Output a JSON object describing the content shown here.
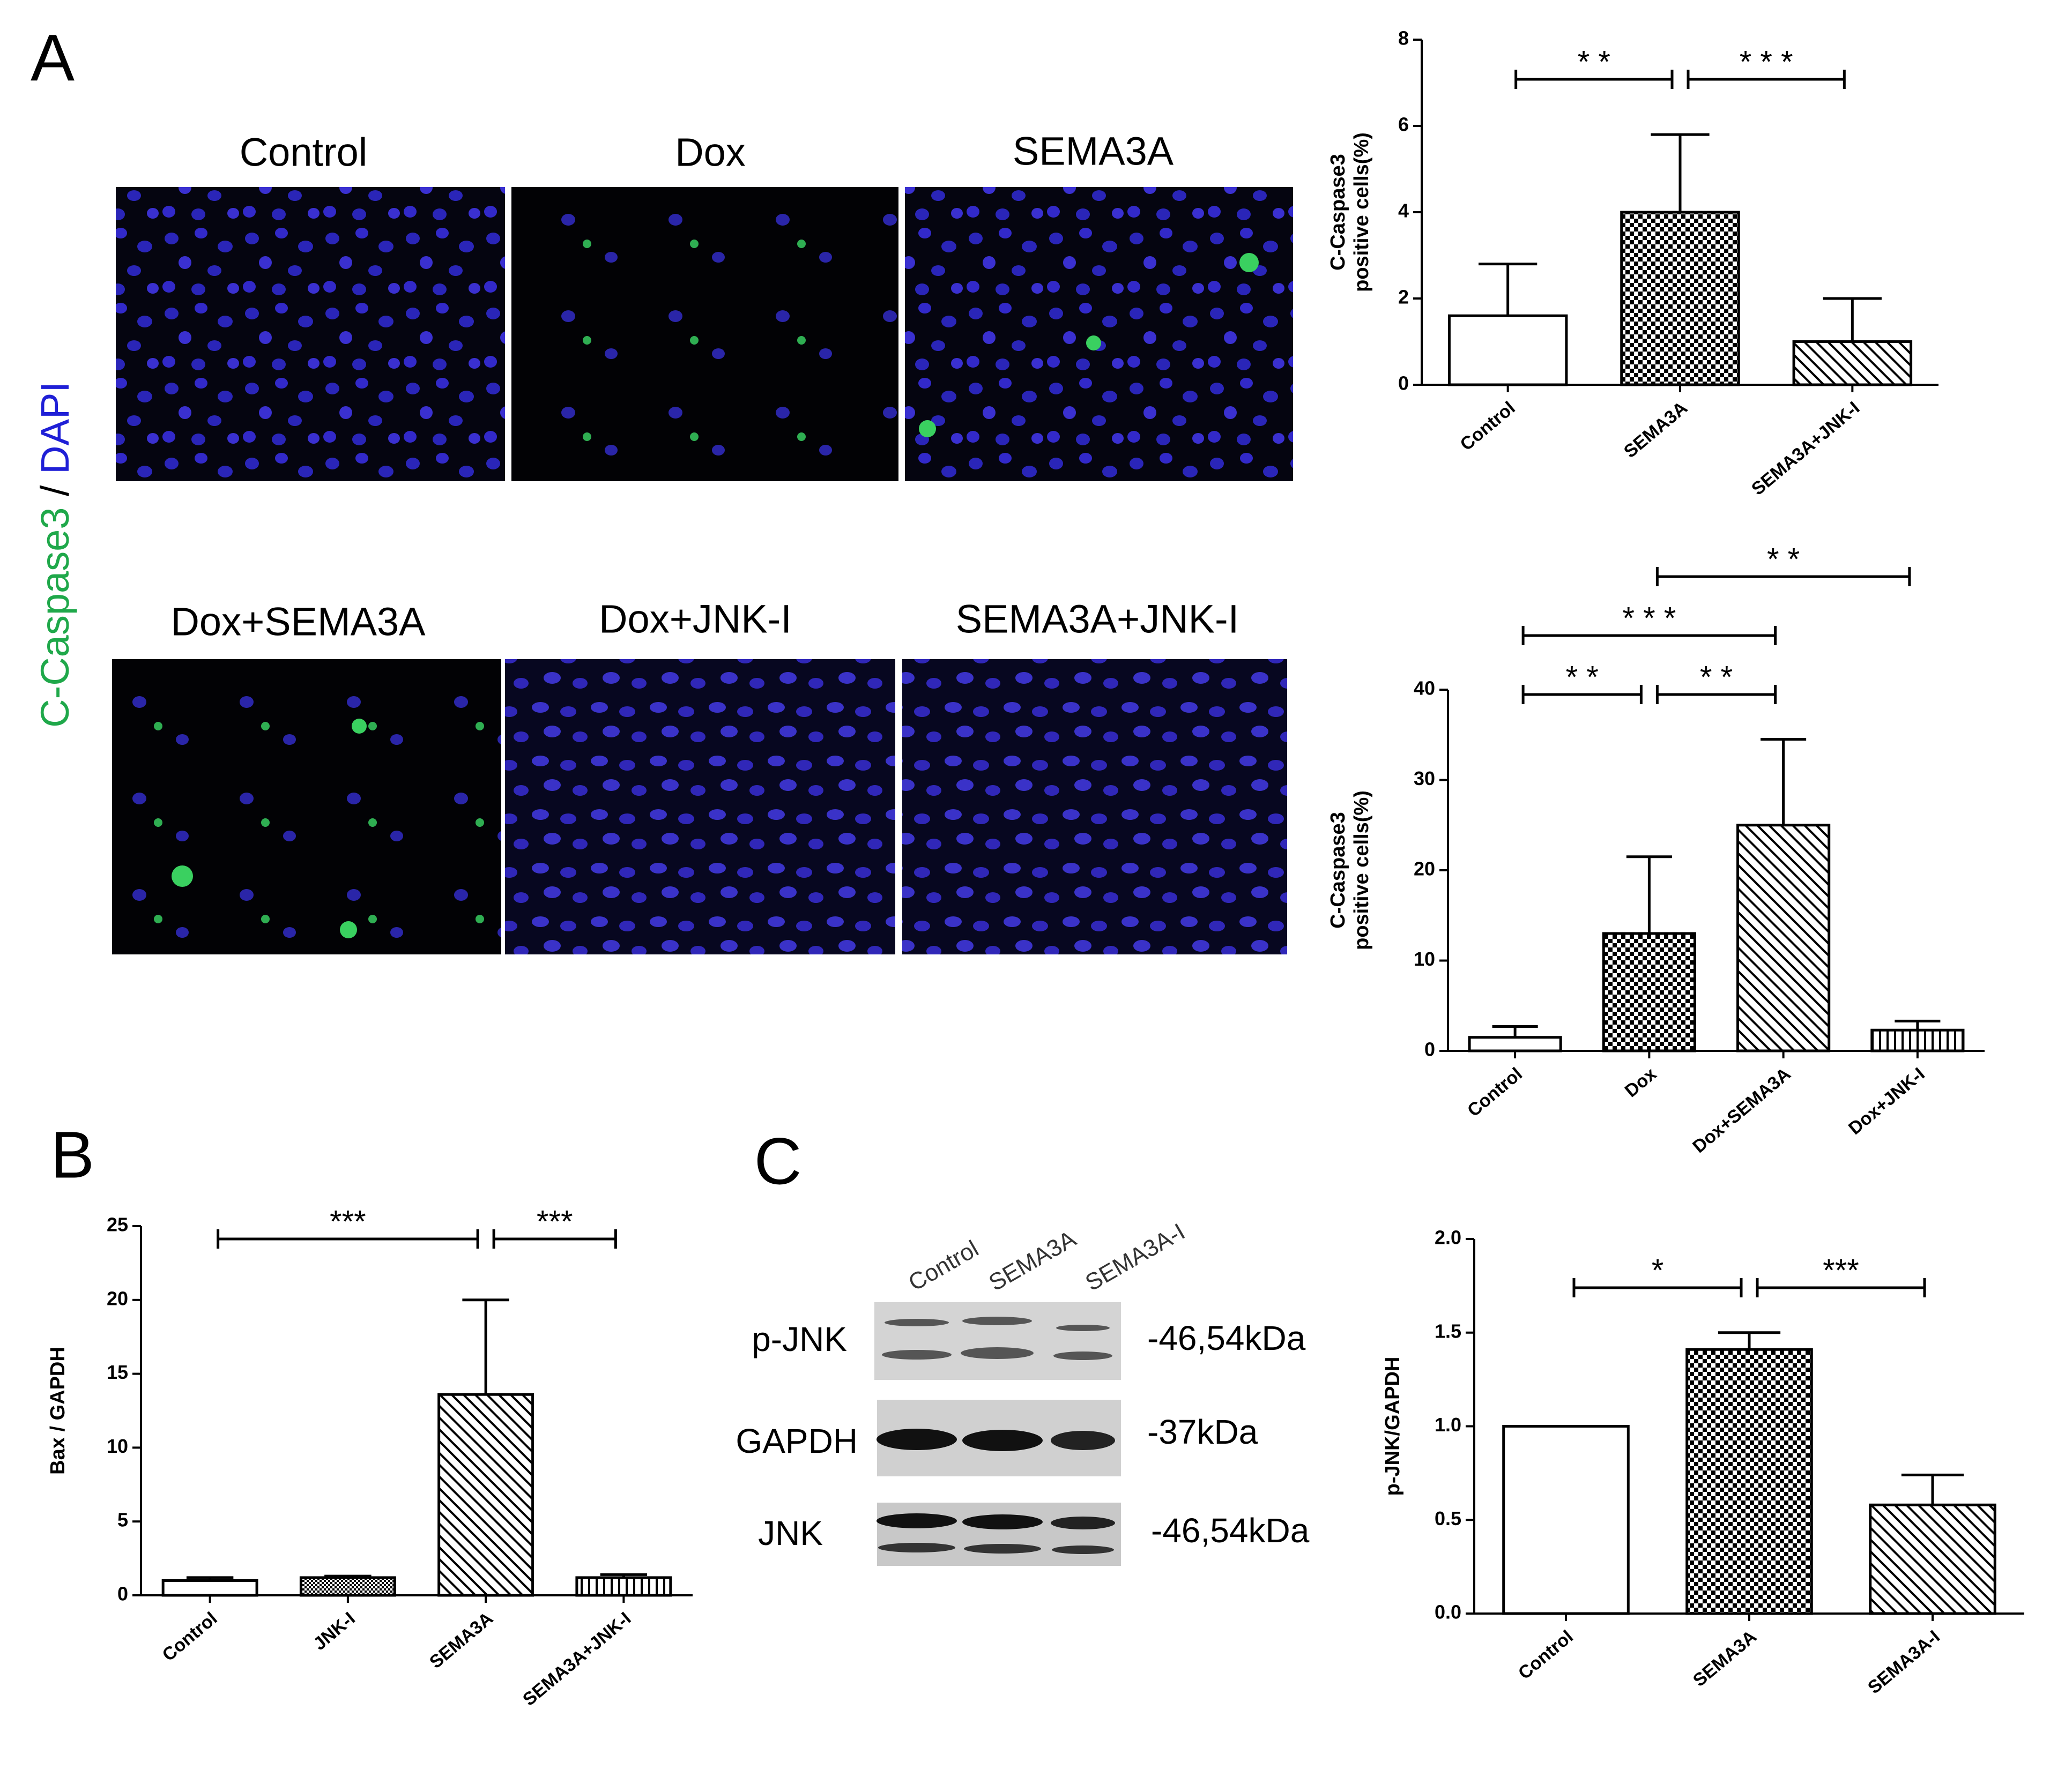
{
  "panel_labels": [
    "A",
    "B",
    "C"
  ],
  "micrographs": {
    "titles": [
      "Control",
      "Dox",
      "SEMA3A",
      "Dox+SEMA3A",
      "Dox+JNK-I",
      "SEMA3A+JNK-I"
    ],
    "stain_label": {
      "marker": "C-Caspase3",
      "separator": " / ",
      "counterstain": "DAPI"
    }
  },
  "western_blot": {
    "lanes": [
      "Control",
      "SEMA3A",
      "SEMA3A-I"
    ],
    "rows": [
      {
        "protein": "p-JNK",
        "size": "-46,54kDa"
      },
      {
        "protein": "GAPDH",
        "size": "-37kDa"
      },
      {
        "protein": "JNK",
        "size": "-46,54kDa"
      }
    ]
  },
  "chart_data": [
    {
      "type": "bar",
      "ylabel": [
        "C-Caspase3",
        "positive cells(%)"
      ],
      "categories": [
        "Control",
        "SEMA3A",
        "SEMA3A+JNK-I"
      ],
      "values": [
        1.6,
        4.0,
        1.0
      ],
      "errors": [
        1.2,
        1.8,
        1.0
      ],
      "patterns": [
        "none",
        "checker",
        "diagonal"
      ],
      "color": "#000000",
      "ylim": [
        0,
        8
      ],
      "yticks": [
        0,
        2,
        4,
        6,
        8
      ],
      "grid": false,
      "annotations": [
        {
          "text": "* *",
          "between": [
            "Control",
            "SEMA3A"
          ]
        },
        {
          "text": "* * *",
          "between": [
            "SEMA3A",
            "SEMA3A+JNK-I"
          ]
        }
      ]
    },
    {
      "type": "bar",
      "ylabel": [
        "C-Caspase3",
        "positive cells(%)"
      ],
      "categories": [
        "Control",
        "Dox",
        "Dox+SEMA3A",
        "Dox+JNK-I"
      ],
      "values": [
        1.5,
        13,
        25,
        2.3
      ],
      "errors": [
        1.2,
        8.5,
        9.5,
        1.0
      ],
      "patterns": [
        "none",
        "checker",
        "diagonal",
        "vertical"
      ],
      "color": "#000000",
      "ylim": [
        0,
        40
      ],
      "yticks": [
        0,
        10,
        20,
        30,
        40
      ],
      "grid": false,
      "annotations": [
        {
          "text": "* *",
          "between": [
            "Control",
            "Dox"
          ]
        },
        {
          "text": "* *",
          "between": [
            "Dox",
            "Dox+SEMA3A"
          ]
        },
        {
          "text": "* * *",
          "between": [
            "Control",
            "Dox+SEMA3A"
          ]
        },
        {
          "text": "* *",
          "between": [
            "Dox",
            "Dox+JNK-I"
          ]
        }
      ]
    },
    {
      "type": "bar",
      "ylabel": [
        "Bax / GAPDH"
      ],
      "categories": [
        "Control",
        "JNK-I",
        "SEMA3A",
        "SEMA3A+JNK-I"
      ],
      "values": [
        1.0,
        1.2,
        13.6,
        1.2
      ],
      "errors": [
        0.2,
        0.1,
        6.4,
        0.2
      ],
      "patterns": [
        "none",
        "dots",
        "diagonal",
        "vertical"
      ],
      "color": "#000000",
      "ylim": [
        0,
        25
      ],
      "yticks": [
        0,
        5,
        10,
        15,
        20,
        25
      ],
      "grid": false,
      "annotations": [
        {
          "text": "***",
          "between": [
            "Control",
            "SEMA3A"
          ]
        },
        {
          "text": "***",
          "between": [
            "SEMA3A",
            "SEMA3A+JNK-I"
          ]
        }
      ]
    },
    {
      "type": "bar",
      "ylabel": [
        "p-JNK/GAPDH"
      ],
      "categories": [
        "Control",
        "SEMA3A",
        "SEMA3A-I"
      ],
      "values": [
        1.0,
        1.41,
        0.58
      ],
      "errors": [
        0,
        0.09,
        0.16
      ],
      "patterns": [
        "none",
        "checker",
        "diagonal"
      ],
      "color": "#000000",
      "ylim": [
        0,
        2
      ],
      "yticks": [
        {
          "value": 0,
          "label": "0.0"
        },
        {
          "value": 0.5,
          "label": "0.5"
        },
        {
          "value": 1,
          "label": "1.0"
        },
        {
          "value": 1.5,
          "label": "1.5"
        },
        {
          "value": 2,
          "label": "2.0"
        }
      ],
      "grid": false,
      "annotations": [
        {
          "text": "*",
          "between": [
            "Control",
            "SEMA3A"
          ]
        },
        {
          "text": "***",
          "between": [
            "SEMA3A",
            "SEMA3A-I"
          ]
        }
      ]
    }
  ]
}
